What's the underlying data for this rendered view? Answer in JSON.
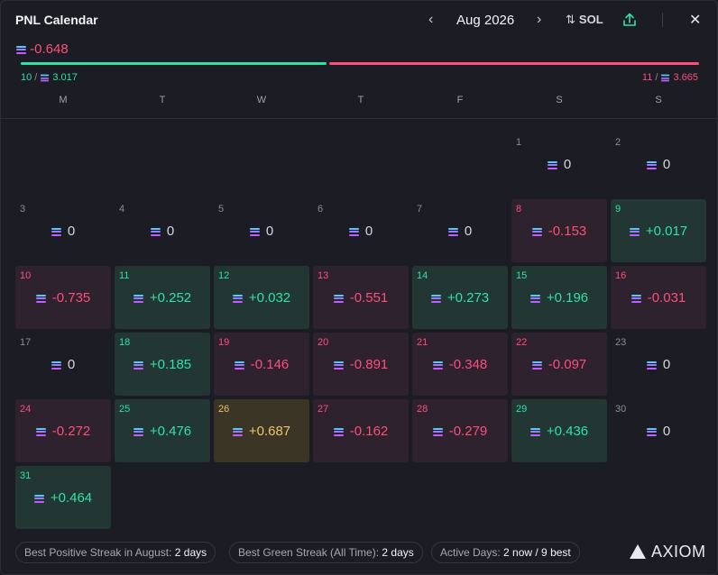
{
  "header": {
    "title": "PNL Calendar",
    "month": "Aug 2026",
    "prev_icon": "chevron-left-icon",
    "next_icon": "chevron-right-icon",
    "currency": "SOL",
    "currency_icon": "sort-arrows-icon",
    "share_icon": "share-icon",
    "close_icon": "close-icon"
  },
  "summary": {
    "total": "-0.648",
    "green_days": "10",
    "green_total": "3.017",
    "red_days": "11",
    "red_total": "3.665",
    "green_fraction": 0.45,
    "colors": {
      "green": "#2ee3a4",
      "red": "#ff4d7d",
      "gold": "#f0c36b"
    }
  },
  "weekdays": [
    "M",
    "T",
    "W",
    "T",
    "F",
    "S",
    "S"
  ],
  "days": [
    {
      "day": "1",
      "value": "0",
      "status": "zero"
    },
    {
      "day": "2",
      "value": "0",
      "status": "zero"
    },
    {
      "day": "3",
      "value": "0",
      "status": "zero"
    },
    {
      "day": "4",
      "value": "0",
      "status": "zero"
    },
    {
      "day": "5",
      "value": "0",
      "status": "zero"
    },
    {
      "day": "6",
      "value": "0",
      "status": "zero"
    },
    {
      "day": "7",
      "value": "0",
      "status": "zero"
    },
    {
      "day": "8",
      "value": "-0.153",
      "status": "neg"
    },
    {
      "day": "9",
      "value": "+0.017",
      "status": "pos"
    },
    {
      "day": "10",
      "value": "-0.735",
      "status": "neg"
    },
    {
      "day": "11",
      "value": "+0.252",
      "status": "pos"
    },
    {
      "day": "12",
      "value": "+0.032",
      "status": "pos"
    },
    {
      "day": "13",
      "value": "-0.551",
      "status": "neg"
    },
    {
      "day": "14",
      "value": "+0.273",
      "status": "pos"
    },
    {
      "day": "15",
      "value": "+0.196",
      "status": "pos"
    },
    {
      "day": "16",
      "value": "-0.031",
      "status": "neg"
    },
    {
      "day": "17",
      "value": "0",
      "status": "zero"
    },
    {
      "day": "18",
      "value": "+0.185",
      "status": "pos"
    },
    {
      "day": "19",
      "value": "-0.146",
      "status": "neg"
    },
    {
      "day": "20",
      "value": "-0.891",
      "status": "neg"
    },
    {
      "day": "21",
      "value": "-0.348",
      "status": "neg"
    },
    {
      "day": "22",
      "value": "-0.097",
      "status": "neg"
    },
    {
      "day": "23",
      "value": "0",
      "status": "zero"
    },
    {
      "day": "24",
      "value": "-0.272",
      "status": "neg"
    },
    {
      "day": "25",
      "value": "+0.476",
      "status": "pos"
    },
    {
      "day": "26",
      "value": "+0.687",
      "status": "best"
    },
    {
      "day": "27",
      "value": "-0.162",
      "status": "neg"
    },
    {
      "day": "28",
      "value": "-0.279",
      "status": "neg"
    },
    {
      "day": "29",
      "value": "+0.436",
      "status": "pos"
    },
    {
      "day": "30",
      "value": "0",
      "status": "zero"
    },
    {
      "day": "31",
      "value": "+0.464",
      "status": "pos"
    }
  ],
  "footer": {
    "streak_label": "Best Positive Streak in August:",
    "streak_value": "2 days",
    "green_label": "Best Green Streak (All Time):",
    "green_value": "2 days",
    "active_label": "Active Days:",
    "active_value": "2 now / 9 best",
    "logo": "AXIOM",
    "logo_icon": "axiom-logo-icon"
  }
}
